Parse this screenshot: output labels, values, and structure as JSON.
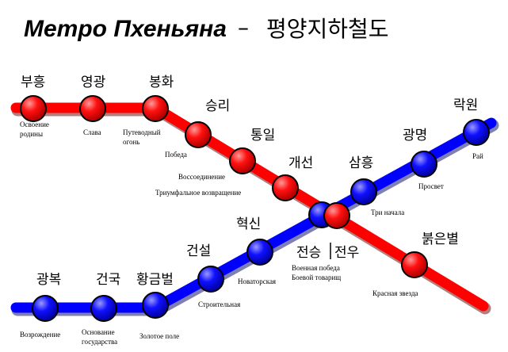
{
  "title": {
    "ru": "Метро Пхеньяна",
    "dash": "–",
    "ko": "평양지하철도"
  },
  "red_line": {
    "stations": [
      {
        "label": "부흥",
        "ru": [
          "Освоение",
          "родины"
        ]
      },
      {
        "label": "영광",
        "ru": [
          "Слава"
        ]
      },
      {
        "label": "봉화",
        "ru": [
          "Путеводный",
          "огонь"
        ]
      },
      {
        "label": "승리",
        "ru": [
          "Победа"
        ]
      },
      {
        "label": "통일",
        "ru": [
          "Воссоединение"
        ]
      },
      {
        "label": "개선",
        "ru": [
          "Триумфальное возвращение"
        ]
      },
      {
        "label": "전승",
        "ru": [
          "Военная победа"
        ]
      },
      {
        "label": "붉은별",
        "ru": [
          "Красная звезда"
        ]
      }
    ]
  },
  "blue_line": {
    "stations": [
      {
        "label": "광복",
        "ru": [
          "Возрождение"
        ]
      },
      {
        "label": "건국",
        "ru": [
          "Основание",
          "государства"
        ]
      },
      {
        "label": "황금벌",
        "ru": [
          "Золотое поле"
        ]
      },
      {
        "label": "건설",
        "ru": [
          "Строительная"
        ]
      },
      {
        "label": "혁신",
        "ru": [
          "Новаторская"
        ]
      },
      {
        "label": "전우",
        "ru": [
          "Боевой товарищ"
        ]
      },
      {
        "label": "삼흥",
        "ru": [
          "Три начала"
        ]
      },
      {
        "label": "광명",
        "ru": [
          "Просвет"
        ]
      },
      {
        "label": "락원",
        "ru": [
          "Рай"
        ]
      }
    ]
  }
}
